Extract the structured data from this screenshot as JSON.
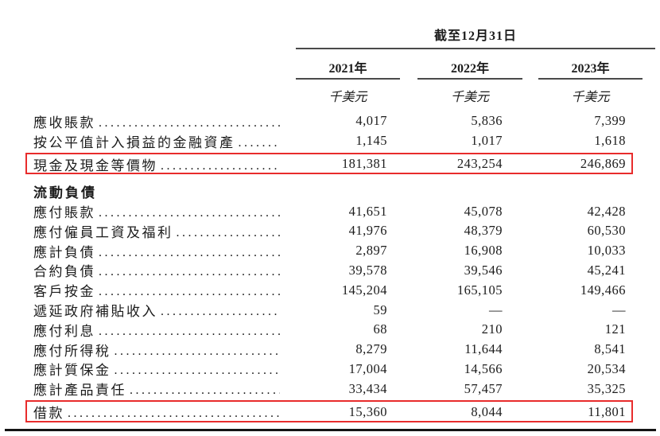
{
  "page": {
    "background": "#ffffff",
    "text_color": "#1c1c1c",
    "rule_color": "#4a4a4a",
    "highlight_border_color": "#e82c2c",
    "bottom_rule_color": "#141414"
  },
  "table": {
    "period_header": "截至12月31日",
    "years": [
      "2021年",
      "2022年",
      "2023年"
    ],
    "unit_label": "千美元",
    "rows": [
      {
        "type": "data",
        "label": "應收賬款",
        "values": [
          "4,017",
          "5,836",
          "7,399"
        ]
      },
      {
        "type": "data",
        "label": "按公平值計入損益的金融資產",
        "values": [
          "1,145",
          "1,017",
          "1,618"
        ]
      },
      {
        "type": "data",
        "label": "現金及現金等價物",
        "values": [
          "181,381",
          "243,254",
          "246,869"
        ],
        "highlighted": true
      },
      {
        "type": "section",
        "label": "流動負債"
      },
      {
        "type": "data",
        "label": "應付賬款",
        "values": [
          "41,651",
          "45,078",
          "42,428"
        ]
      },
      {
        "type": "data",
        "label": "應付僱員工資及福利",
        "values": [
          "41,976",
          "48,379",
          "60,530"
        ]
      },
      {
        "type": "data",
        "label": "應計負債",
        "values": [
          "2,897",
          "16,908",
          "10,033"
        ]
      },
      {
        "type": "data",
        "label": "合約負債",
        "values": [
          "39,578",
          "39,546",
          "45,241"
        ]
      },
      {
        "type": "data",
        "label": "客戶按金",
        "values": [
          "145,204",
          "165,105",
          "149,466"
        ]
      },
      {
        "type": "data",
        "label": "遞延政府補貼收入",
        "values": [
          "59",
          "—",
          "—"
        ]
      },
      {
        "type": "data",
        "label": "應付利息",
        "values": [
          "68",
          "210",
          "121"
        ]
      },
      {
        "type": "data",
        "label": "應付所得稅",
        "values": [
          "8,279",
          "11,644",
          "8,541"
        ]
      },
      {
        "type": "data",
        "label": "應計質保金",
        "values": [
          "17,004",
          "14,566",
          "20,534"
        ]
      },
      {
        "type": "data",
        "label": "應計產品責任",
        "values": [
          "33,434",
          "57,457",
          "35,325"
        ]
      },
      {
        "type": "data",
        "label": "借款",
        "values": [
          "15,360",
          "8,044",
          "11,801"
        ],
        "highlighted": true
      }
    ]
  }
}
